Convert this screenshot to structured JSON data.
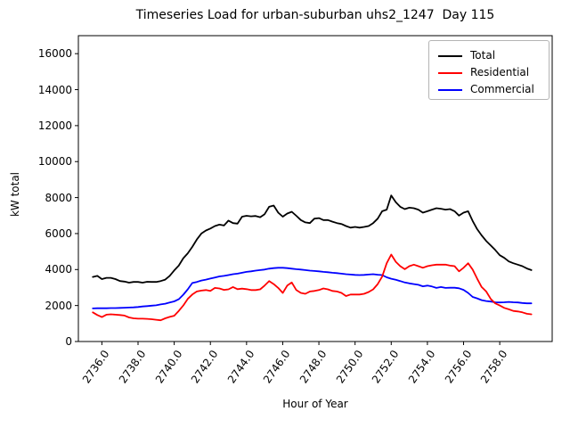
{
  "title": "Timeseries Load for urban-suburban uhs2_1247  Day 115",
  "chart_data": {
    "type": "line",
    "title": "Timeseries Load for urban-suburban uhs2_1247  Day 115",
    "xlabel": "Hour of Year",
    "ylabel": "kW total",
    "xlim": [
      2734.7,
      2760.9
    ],
    "ylim": [
      0,
      17000
    ],
    "grid": false,
    "legend_position": "upper right",
    "x_ticks": [
      2736,
      2738,
      2740,
      2742,
      2744,
      2746,
      2748,
      2750,
      2752,
      2754,
      2756,
      2758
    ],
    "x_tick_labels": [
      "2736.0",
      "2738.0",
      "2740.0",
      "2742.0",
      "2744.0",
      "2746.0",
      "2748.0",
      "2750.0",
      "2752.0",
      "2754.0",
      "2756.0",
      "2758.0"
    ],
    "y_ticks": [
      0,
      2000,
      4000,
      6000,
      8000,
      10000,
      12000,
      14000,
      16000
    ],
    "y_tick_labels": [
      "0",
      "2000",
      "4000",
      "6000",
      "8000",
      "10000",
      "12000",
      "14000",
      "16000"
    ],
    "x": [
      2735.5,
      2735.75,
      2736.0,
      2736.25,
      2736.5,
      2736.75,
      2737.0,
      2737.25,
      2737.5,
      2737.75,
      2738.0,
      2738.25,
      2738.5,
      2738.75,
      2739.0,
      2739.25,
      2739.5,
      2739.75,
      2740.0,
      2740.25,
      2740.5,
      2740.75,
      2741.0,
      2741.25,
      2741.5,
      2741.75,
      2742.0,
      2742.25,
      2742.5,
      2742.75,
      2743.0,
      2743.25,
      2743.5,
      2743.75,
      2744.0,
      2744.25,
      2744.5,
      2744.75,
      2745.0,
      2745.25,
      2745.5,
      2745.75,
      2746.0,
      2746.25,
      2746.5,
      2746.75,
      2747.0,
      2747.25,
      2747.5,
      2747.75,
      2748.0,
      2748.25,
      2748.5,
      2748.75,
      2749.0,
      2749.25,
      2749.5,
      2749.75,
      2750.0,
      2750.25,
      2750.5,
      2750.75,
      2751.0,
      2751.25,
      2751.5,
      2751.75,
      2752.0,
      2752.25,
      2752.5,
      2752.75,
      2753.0,
      2753.25,
      2753.5,
      2753.75,
      2754.0,
      2754.25,
      2754.5,
      2754.75,
      2755.0,
      2755.25,
      2755.5,
      2755.75,
      2756.0,
      2756.25,
      2756.5,
      2756.75,
      2757.0,
      2757.25,
      2757.5,
      2757.75,
      2758.0,
      2758.25,
      2758.5,
      2758.75,
      2759.0,
      2759.25,
      2759.5,
      2759.75
    ],
    "series": [
      {
        "name": "Total",
        "color": "#000000",
        "values": [
          3590,
          3650,
          3470,
          3540,
          3540,
          3470,
          3360,
          3330,
          3270,
          3310,
          3310,
          3270,
          3320,
          3310,
          3310,
          3360,
          3440,
          3650,
          3950,
          4220,
          4630,
          4900,
          5260,
          5670,
          6000,
          6170,
          6280,
          6420,
          6500,
          6450,
          6720,
          6580,
          6550,
          6940,
          6990,
          6960,
          6980,
          6910,
          7080,
          7490,
          7560,
          7160,
          6940,
          7110,
          7210,
          6990,
          6750,
          6620,
          6580,
          6830,
          6860,
          6750,
          6750,
          6660,
          6580,
          6530,
          6420,
          6330,
          6370,
          6330,
          6370,
          6420,
          6580,
          6830,
          7240,
          7330,
          8120,
          7740,
          7490,
          7360,
          7440,
          7410,
          7330,
          7160,
          7240,
          7330,
          7410,
          7380,
          7330,
          7360,
          7240,
          7000,
          7160,
          7240,
          6700,
          6250,
          5900,
          5590,
          5340,
          5090,
          4800,
          4650,
          4450,
          4350,
          4270,
          4190,
          4060,
          3970
        ]
      },
      {
        "name": "Residential",
        "color": "#ff0000",
        "values": [
          1620,
          1470,
          1360,
          1490,
          1510,
          1490,
          1470,
          1440,
          1340,
          1290,
          1270,
          1270,
          1260,
          1240,
          1210,
          1180,
          1290,
          1370,
          1430,
          1700,
          2000,
          2370,
          2610,
          2780,
          2830,
          2860,
          2810,
          2980,
          2950,
          2870,
          2900,
          3030,
          2910,
          2940,
          2910,
          2860,
          2860,
          2900,
          3110,
          3360,
          3190,
          2980,
          2700,
          3110,
          3280,
          2860,
          2700,
          2650,
          2780,
          2810,
          2860,
          2950,
          2900,
          2810,
          2780,
          2700,
          2530,
          2610,
          2610,
          2610,
          2650,
          2750,
          2900,
          3190,
          3610,
          4350,
          4830,
          4430,
          4190,
          4020,
          4190,
          4270,
          4190,
          4100,
          4190,
          4240,
          4270,
          4270,
          4270,
          4220,
          4190,
          3900,
          4100,
          4350,
          4000,
          3500,
          3030,
          2780,
          2370,
          2120,
          2000,
          1870,
          1790,
          1700,
          1670,
          1620,
          1540,
          1510
        ]
      },
      {
        "name": "Commercial",
        "color": "#0000ff",
        "values": [
          1840,
          1850,
          1850,
          1850,
          1860,
          1860,
          1870,
          1880,
          1890,
          1900,
          1920,
          1950,
          1970,
          1990,
          2010,
          2060,
          2100,
          2170,
          2230,
          2350,
          2600,
          2900,
          3250,
          3310,
          3390,
          3440,
          3500,
          3560,
          3620,
          3650,
          3690,
          3740,
          3770,
          3820,
          3870,
          3900,
          3940,
          3970,
          4000,
          4050,
          4080,
          4100,
          4100,
          4080,
          4050,
          4020,
          4000,
          3970,
          3940,
          3920,
          3900,
          3870,
          3850,
          3820,
          3800,
          3770,
          3740,
          3720,
          3700,
          3690,
          3700,
          3720,
          3740,
          3710,
          3690,
          3570,
          3490,
          3430,
          3360,
          3280,
          3230,
          3190,
          3150,
          3070,
          3110,
          3060,
          2980,
          3030,
          2980,
          2990,
          2990,
          2960,
          2870,
          2700,
          2480,
          2400,
          2300,
          2250,
          2220,
          2180,
          2170,
          2180,
          2200,
          2180,
          2170,
          2140,
          2120,
          2120
        ]
      }
    ]
  }
}
